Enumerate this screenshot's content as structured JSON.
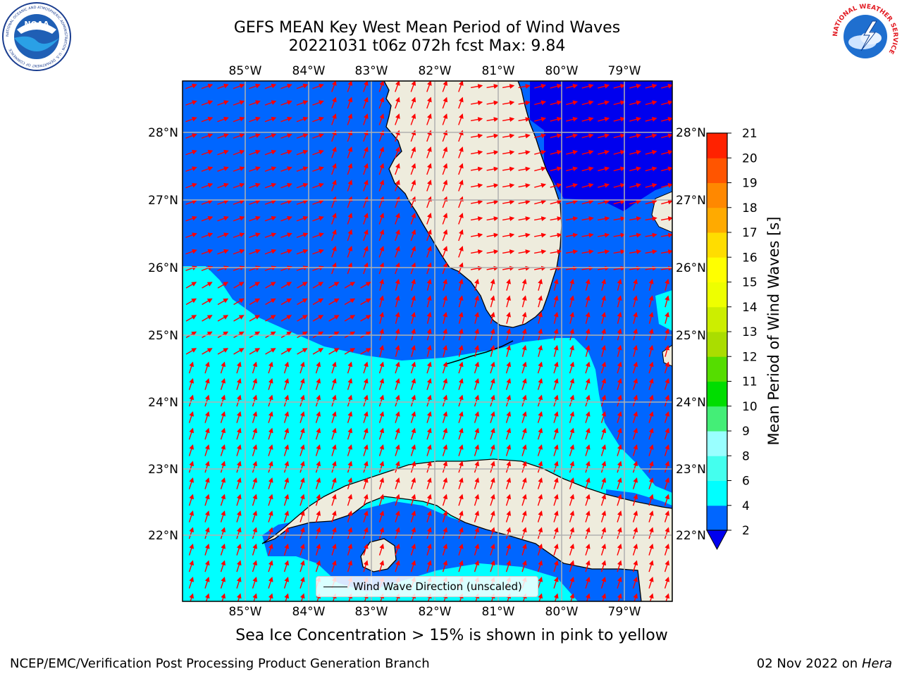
{
  "header": {
    "title_line1": "GEFS MEAN Key West Mean Period of Wind Waves",
    "title_line2": "20221031 t06z 072h fcst   Max: 9.84"
  },
  "logos": {
    "left": "noaa-logo",
    "left_text": "NOAA",
    "left_ring_text": "NATIONAL OCEANIC AND ATMOSPHERIC ADMINISTRATION · U.S. DEPARTMENT OF COMMERCE",
    "right": "nws-logo",
    "right_ring_text": "NATIONAL WEATHER SERVICE"
  },
  "map": {
    "lon_labels": [
      "85°W",
      "84°W",
      "83°W",
      "82°W",
      "81°W",
      "80°W",
      "79°W"
    ],
    "lat_labels": [
      "28°N",
      "27°N",
      "26°N",
      "25°N",
      "24°N",
      "23°N",
      "22°N"
    ],
    "legend_label": "Wind Wave Direction (unscaled)",
    "arrow_color": "#ff0000",
    "land_color": "#eeecdd",
    "grid_color": "#b0b0b0"
  },
  "colorbar": {
    "label": "Mean Period of Wind Waves [s]",
    "ticks": [
      "2",
      "4",
      "6",
      "8",
      "9",
      "10",
      "11",
      "12",
      "13",
      "14",
      "15",
      "16",
      "17",
      "18",
      "19",
      "20",
      "21"
    ],
    "colors": [
      "#0066ff",
      "#00ffff",
      "#44ffee",
      "#99ffff",
      "#44ee77",
      "#00dd00",
      "#55dd00",
      "#aadd00",
      "#ccee00",
      "#eeff00",
      "#ffff00",
      "#ffdd00",
      "#ffaa00",
      "#ff8800",
      "#ff5500",
      "#ff2200",
      "#ff0000"
    ],
    "under_color": "#0000ee"
  },
  "subtitle": "Sea Ice Concentration > 15% is shown in pink to yellow",
  "footer": {
    "left": "NCEP/EMC/Verification Post Processing Product Generation Branch",
    "right_date": "02 Nov 2022 on",
    "right_host": "Hera"
  }
}
